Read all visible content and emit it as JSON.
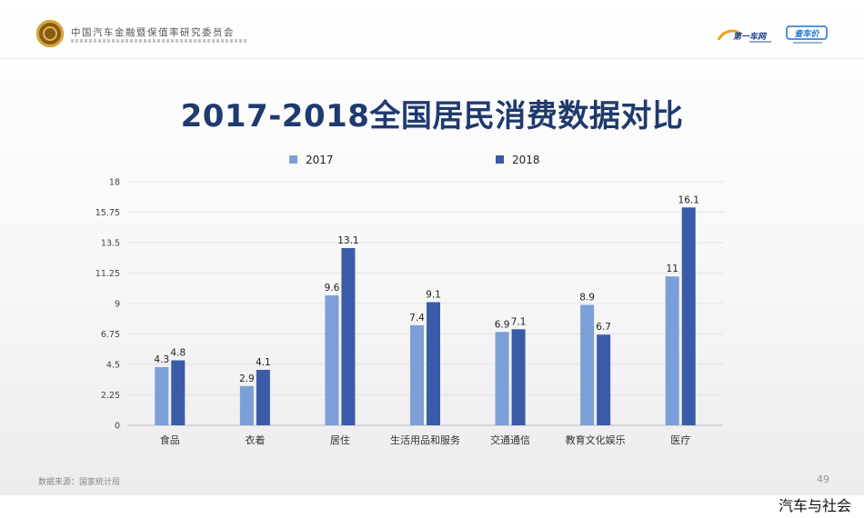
{
  "header": {
    "org_name": "中国汽车金融暨保值率研究委员会",
    "brand_1": "第一车网",
    "brand_2": "查车价"
  },
  "title": "2017-2018全国居民消费数据对比",
  "footer": {
    "source": "数据来源：国家统计局",
    "page_number": "49",
    "watermark": "汽车与社会"
  },
  "colors": {
    "series_2017": "#7b9fd6",
    "series_2018": "#3a5ca8",
    "title": "#1f3a6e"
  },
  "chart_data": {
    "type": "bar",
    "title": "2017-2018全国居民消费数据对比",
    "categories": [
      "食品",
      "衣着",
      "居住",
      "生活用品和服务",
      "交通通信",
      "教育文化娱乐",
      "医疗"
    ],
    "series": [
      {
        "name": "2017",
        "values": [
          4.3,
          2.9,
          9.6,
          7.4,
          6.9,
          8.9,
          11
        ],
        "labels": [
          "4.3",
          "2.9",
          "9.6",
          "7.4",
          "6.9",
          "8.9",
          "11"
        ]
      },
      {
        "name": "2018",
        "values": [
          4.8,
          4.1,
          13.1,
          9.1,
          7.1,
          6.7,
          16.1
        ],
        "labels": [
          "4.8",
          "4.1",
          "13.1",
          "9.1",
          "7.1",
          "6.7",
          "16.1"
        ]
      }
    ],
    "yticks": [
      "0",
      "2.25",
      "4.5",
      "6.75",
      "9",
      "11.25",
      "13.5",
      "15.75",
      "18"
    ],
    "ylim": [
      0,
      18
    ],
    "grid": true,
    "legend_position": "top-center",
    "xlabel": "",
    "ylabel": ""
  }
}
